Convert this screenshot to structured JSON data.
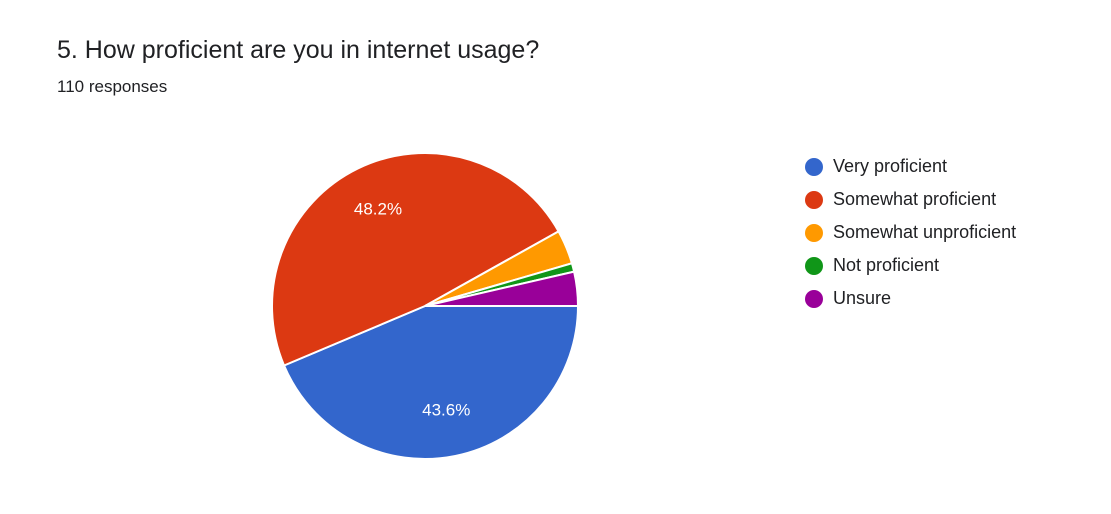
{
  "header": {
    "title": "5. How proficient are you in internet usage?",
    "subtitle": "110 responses"
  },
  "chart_data": {
    "type": "pie",
    "categories": [
      "Very proficient",
      "Somewhat proficient",
      "Somewhat unproficient",
      "Not proficient",
      "Unsure"
    ],
    "values": [
      43.6,
      48.2,
      3.6,
      0.9,
      3.6
    ],
    "colors": [
      "#3366cc",
      "#dc3912",
      "#ff9900",
      "#109618",
      "#990099"
    ],
    "slice_labels": [
      "43.6%",
      "48.2%",
      "",
      "",
      ""
    ],
    "legend_position": "right"
  }
}
